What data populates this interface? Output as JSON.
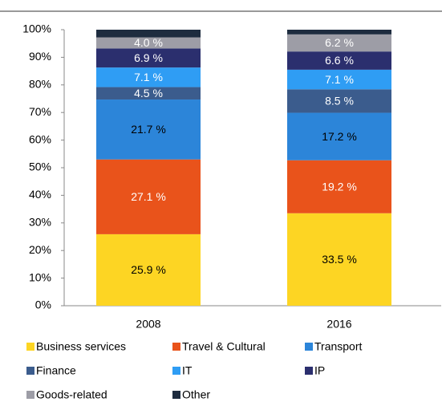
{
  "chart_data": {
    "type": "stacked_bar",
    "categories": [
      "2008",
      "2016"
    ],
    "series": [
      {
        "name": "Business services",
        "color": "#FDD523",
        "values": [
          25.9,
          33.5
        ],
        "value_labels": [
          "25.9 %",
          "33.5 %"
        ]
      },
      {
        "name": "Travel & Cultural",
        "color": "#E9531B",
        "values": [
          27.1,
          19.2
        ],
        "value_labels": [
          "27.1 %",
          "19.2 %"
        ]
      },
      {
        "name": "Transport",
        "color": "#2C85D9",
        "values": [
          21.7,
          17.2
        ],
        "value_labels": [
          "21.7 %",
          "17.2 %"
        ]
      },
      {
        "name": "Finance",
        "color": "#3B5C8D",
        "values": [
          4.5,
          8.5
        ],
        "value_labels": [
          "4.5 %",
          "8.5 %"
        ]
      },
      {
        "name": "IT",
        "color": "#2F9DF4",
        "values": [
          7.1,
          7.1
        ],
        "value_labels": [
          "7.1 %",
          "7.1 %"
        ]
      },
      {
        "name": "IP",
        "color": "#2B2F6E",
        "values": [
          6.9,
          6.6
        ],
        "value_labels": [
          "6.9 %",
          "6.6 %"
        ]
      },
      {
        "name": "Goods-related",
        "color": "#9D9DA6",
        "values": [
          4.0,
          6.2
        ],
        "value_labels": [
          "4.0 %",
          "6.2 %"
        ]
      },
      {
        "name": "Other",
        "color": "#1E2C3F",
        "values": [
          2.8,
          1.7
        ],
        "value_labels": [
          null,
          null
        ]
      }
    ],
    "ylim": [
      0,
      100
    ],
    "yticks": [
      {
        "value": 0,
        "label": "0%"
      },
      {
        "value": 10,
        "label": "10%"
      },
      {
        "value": 20,
        "label": "20%"
      },
      {
        "value": 30,
        "label": "30%"
      },
      {
        "value": 40,
        "label": "40%"
      },
      {
        "value": 50,
        "label": "50%"
      },
      {
        "value": 60,
        "label": "60%"
      },
      {
        "value": 70,
        "label": "70%"
      },
      {
        "value": 80,
        "label": "80%"
      },
      {
        "value": 90,
        "label": "90%"
      },
      {
        "value": 100,
        "label": "100%"
      }
    ],
    "grid": false
  }
}
